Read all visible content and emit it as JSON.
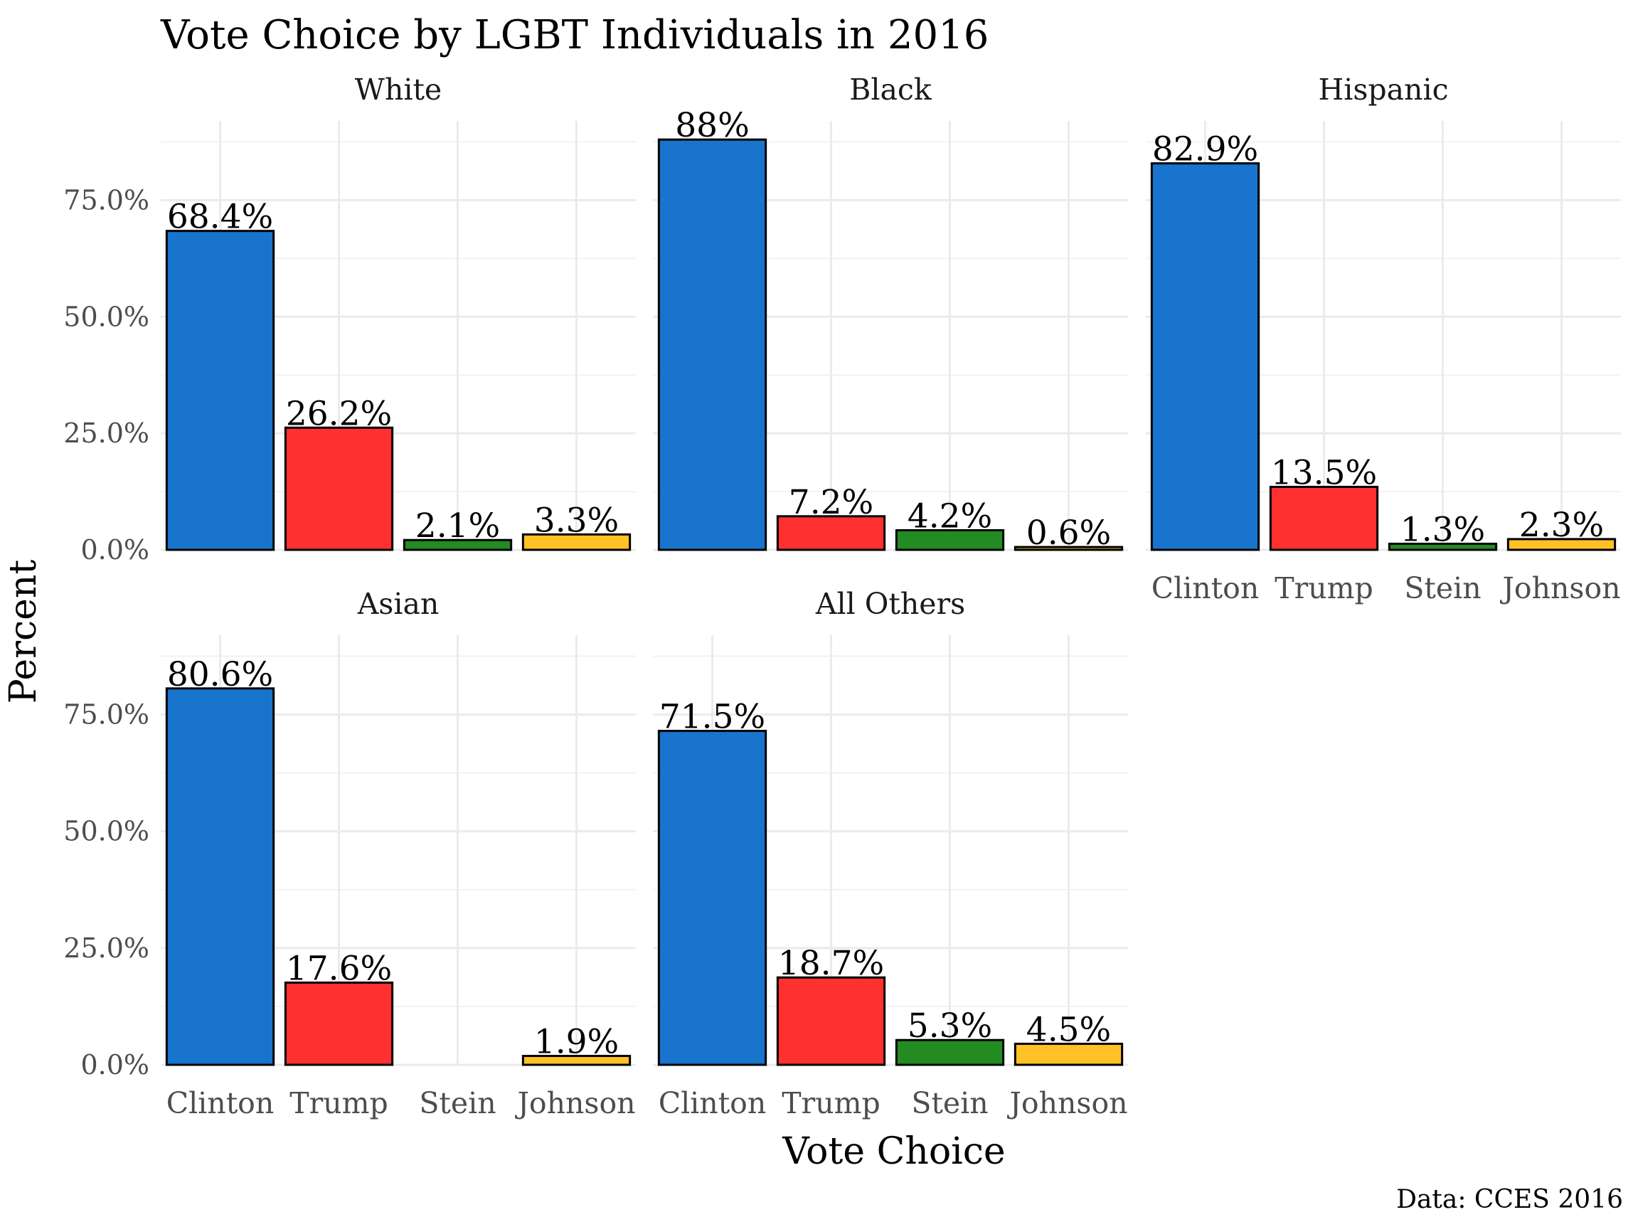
{
  "chart_data": {
    "type": "bar",
    "title": "Vote Choice by LGBT Individuals in 2016",
    "xlabel": "Vote Choice",
    "ylabel": "Percent",
    "caption": "Data: CCES 2016",
    "categories": [
      "Clinton",
      "Trump",
      "Stein",
      "Johnson"
    ],
    "colors": [
      "#1874CD",
      "#FF3030",
      "#228B22",
      "#FFC125"
    ],
    "y_ticks": [
      "0.0%",
      "25.0%",
      "50.0%",
      "75.0%"
    ],
    "y_tick_values": [
      0,
      25,
      50,
      75
    ],
    "ylim": [
      0,
      92
    ],
    "grid": true,
    "legend": "none",
    "panels": [
      {
        "name": "White",
        "values": [
          68.4,
          26.2,
          2.1,
          3.3
        ],
        "labels": [
          "68.4%",
          "26.2%",
          "2.1%",
          "3.3%"
        ]
      },
      {
        "name": "Black",
        "values": [
          88,
          7.2,
          4.2,
          0.6
        ],
        "labels": [
          "88%",
          "7.2%",
          "4.2%",
          "0.6%"
        ]
      },
      {
        "name": "Hispanic",
        "values": [
          82.9,
          13.5,
          1.3,
          2.3
        ],
        "labels": [
          "82.9%",
          "13.5%",
          "1.3%",
          "2.3%"
        ]
      },
      {
        "name": "Asian",
        "values": [
          80.6,
          17.6,
          null,
          1.9
        ],
        "labels": [
          "80.6%",
          "17.6%",
          "",
          "1.9%"
        ]
      },
      {
        "name": "All Others",
        "values": [
          71.5,
          18.7,
          5.3,
          4.5
        ],
        "labels": [
          "71.5%",
          "18.7%",
          "5.3%",
          "4.5%"
        ]
      }
    ]
  }
}
